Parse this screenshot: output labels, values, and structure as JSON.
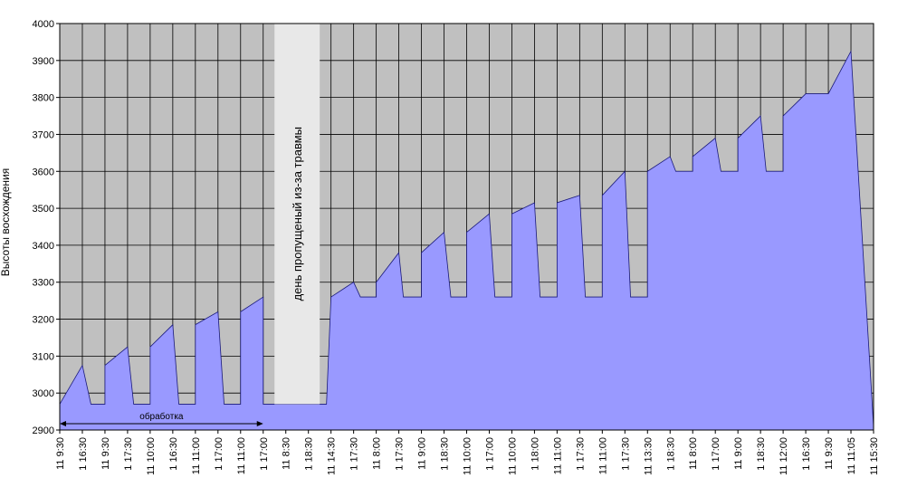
{
  "chart_data": {
    "type": "area",
    "title": "",
    "xlabel": "",
    "ylabel": "Высоты восхождения",
    "ylim": [
      2900,
      4000
    ],
    "yticks": [
      2900,
      3000,
      3100,
      3200,
      3300,
      3400,
      3500,
      3600,
      3700,
      3800,
      3900,
      4000
    ],
    "grid": true,
    "legend": "none",
    "x_categories": [
      "11 9:30",
      "1 16:30",
      "11 9:30",
      "1 17:30",
      "11 10:00",
      "1 16:30",
      "11 11:00",
      "1 17:00",
      "11 11:00",
      "1 17:00",
      "11 8:30",
      "1 18:30",
      "11 14:30",
      "1 17:30",
      "11 8:00",
      "1 17:30",
      "11 9:00",
      "1 18:30",
      "11 10:00",
      "1 17:00",
      "11 10:00",
      "1 18:00",
      "11 11:00",
      "1 17:30",
      "11 11:00",
      "1 17:30",
      "11 13:30",
      "1 18:30",
      "11 8:00",
      "1 17:00",
      "11 9:00",
      "1 18:30",
      "11 12:00",
      "1 16:30",
      "11 9:30",
      "11 11:05",
      "11 15:30"
    ],
    "series": [
      {
        "values": [
          [
            0,
            2970
          ],
          [
            1,
            3075
          ],
          [
            1.38,
            2970
          ],
          [
            2,
            2970
          ],
          [
            2,
            3075
          ],
          [
            3,
            3125
          ],
          [
            3.27,
            2970
          ],
          [
            4,
            2970
          ],
          [
            4,
            3125
          ],
          [
            5,
            3185
          ],
          [
            5.27,
            2970
          ],
          [
            6,
            2970
          ],
          [
            6,
            3185
          ],
          [
            7,
            3220
          ],
          [
            7.27,
            2970
          ],
          [
            8,
            2970
          ],
          [
            8,
            3220
          ],
          [
            9,
            3260
          ],
          [
            9,
            2970
          ],
          [
            10,
            2970
          ],
          [
            11.8,
            2970
          ],
          [
            12,
            3260
          ],
          [
            13,
            3300
          ],
          [
            13.3,
            3260
          ],
          [
            14,
            3260
          ],
          [
            14,
            3300
          ],
          [
            15,
            3380
          ],
          [
            15.2,
            3260
          ],
          [
            16,
            3260
          ],
          [
            16,
            3380
          ],
          [
            17,
            3435
          ],
          [
            17.3,
            3260
          ],
          [
            18,
            3260
          ],
          [
            18,
            3435
          ],
          [
            19,
            3485
          ],
          [
            19.25,
            3260
          ],
          [
            20,
            3260
          ],
          [
            20,
            3485
          ],
          [
            21,
            3515
          ],
          [
            21.25,
            3260
          ],
          [
            22,
            3260
          ],
          [
            22,
            3515
          ],
          [
            23,
            3535
          ],
          [
            23.25,
            3260
          ],
          [
            24,
            3260
          ],
          [
            24,
            3535
          ],
          [
            25,
            3600
          ],
          [
            25.25,
            3260
          ],
          [
            26,
            3260
          ],
          [
            26,
            3600
          ],
          [
            27,
            3640
          ],
          [
            27.25,
            3600
          ],
          [
            28,
            3600
          ],
          [
            28,
            3640
          ],
          [
            29,
            3690
          ],
          [
            29.25,
            3600
          ],
          [
            30,
            3600
          ],
          [
            30,
            3690
          ],
          [
            31,
            3750
          ],
          [
            31.25,
            3600
          ],
          [
            32,
            3600
          ],
          [
            32,
            3750
          ],
          [
            33,
            3810
          ],
          [
            34,
            3810
          ],
          [
            35,
            3925
          ],
          [
            36,
            2910
          ]
        ]
      }
    ],
    "annotations": {
      "treatment": "обработка",
      "missed_day": "день пропущеный из-за травмы"
    },
    "missed_day_range": [
      9.5,
      11.5
    ],
    "treatment_range": [
      0,
      9
    ]
  },
  "colors": {
    "plot_bg": "#c0c0c0",
    "area": "#9999ff",
    "missed_band": "#e8e8e8",
    "grid": "#000000"
  }
}
